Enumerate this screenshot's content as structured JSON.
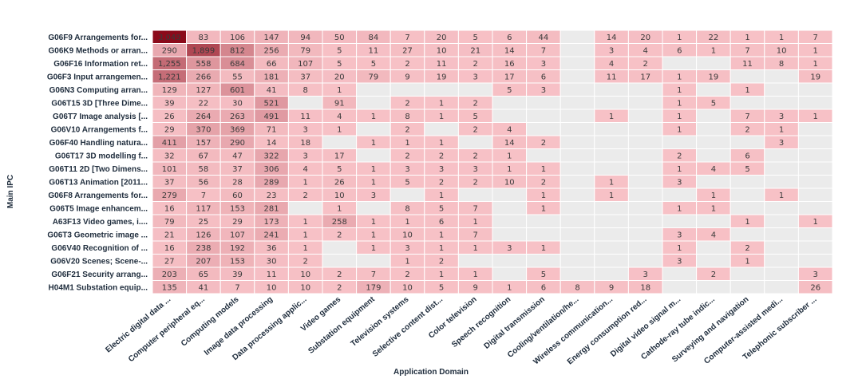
{
  "chart_data": {
    "type": "heatmap",
    "xlabel": "Application Domain",
    "ylabel": "Main IPC",
    "columns": [
      "Electric digital data ...",
      "Computer peripheral eq...",
      "Computing models",
      "Image data processing",
      "Data processing applic...",
      "Video games",
      "Substation equipment",
      "Television systems",
      "Selective content dist...",
      "Color television",
      "Speech recognition",
      "Digital transmission",
      "Cooling/ventilation/he...",
      "Wireless communication...",
      "Energy consumption red...",
      "Digital video signal m...",
      "Cathode-ray tube indic...",
      "Surveying and navigation",
      "Computer-assisted medi...",
      "Telephonic subscriber ..."
    ],
    "rows": [
      "G06F9 Arrangements for...",
      "G06K9 Methods or arran...",
      "G06F16 Information ret...",
      "G06F3 Input arrangemen...",
      "G06N3 Computing arran...",
      "G06T15 3D [Three Dime...",
      "G06T7 Image analysis [...",
      "G06V10 Arrangements f...",
      "G06F40 Handling natura...",
      "G06T17 3D modelling f...",
      "G06T11 2D [Two Dimens...",
      "G06T13 Animation [2011...",
      "G06F8 Arrangements for...",
      "G06T5 Image enhancem...",
      "A63F13 Video games, i....",
      "G06T3 Geometric image ...",
      "G06V40 Recognition of ...",
      "G06V20 Scenes; Scene-...",
      "G06F21 Security arrang...",
      "H04M1 Substation equip..."
    ],
    "values": [
      [
        3049,
        83,
        106,
        147,
        94,
        50,
        84,
        7,
        20,
        5,
        6,
        44,
        null,
        14,
        20,
        1,
        22,
        1,
        1,
        7
      ],
      [
        290,
        1899,
        812,
        256,
        79,
        5,
        11,
        27,
        10,
        21,
        14,
        7,
        null,
        3,
        4,
        6,
        1,
        7,
        10,
        1
      ],
      [
        1255,
        558,
        684,
        66,
        107,
        5,
        5,
        2,
        11,
        2,
        16,
        3,
        null,
        4,
        2,
        null,
        null,
        11,
        8,
        1
      ],
      [
        1221,
        266,
        55,
        181,
        37,
        20,
        79,
        9,
        19,
        3,
        17,
        6,
        null,
        11,
        17,
        1,
        19,
        null,
        null,
        19
      ],
      [
        129,
        127,
        601,
        41,
        8,
        1,
        null,
        null,
        null,
        null,
        5,
        3,
        null,
        null,
        null,
        1,
        null,
        1,
        null,
        null
      ],
      [
        39,
        22,
        30,
        521,
        null,
        91,
        null,
        2,
        1,
        2,
        null,
        null,
        null,
        null,
        null,
        1,
        5,
        null,
        null,
        null
      ],
      [
        26,
        264,
        263,
        491,
        11,
        4,
        1,
        8,
        1,
        5,
        null,
        null,
        null,
        1,
        null,
        1,
        null,
        7,
        3,
        1
      ],
      [
        29,
        370,
        369,
        71,
        3,
        1,
        null,
        2,
        null,
        2,
        4,
        null,
        null,
        null,
        null,
        1,
        null,
        2,
        1,
        null
      ],
      [
        411,
        157,
        290,
        14,
        18,
        null,
        1,
        1,
        1,
        null,
        14,
        2,
        null,
        null,
        null,
        null,
        null,
        null,
        3,
        null
      ],
      [
        32,
        67,
        47,
        322,
        3,
        17,
        null,
        2,
        2,
        2,
        1,
        null,
        null,
        null,
        null,
        2,
        null,
        6,
        null,
        null
      ],
      [
        101,
        58,
        37,
        306,
        4,
        5,
        1,
        3,
        3,
        3,
        1,
        1,
        null,
        null,
        null,
        1,
        4,
        5,
        null,
        null
      ],
      [
        37,
        56,
        28,
        289,
        1,
        26,
        1,
        5,
        2,
        2,
        10,
        2,
        null,
        1,
        null,
        3,
        null,
        null,
        null,
        null
      ],
      [
        279,
        7,
        60,
        23,
        2,
        10,
        3,
        null,
        1,
        null,
        null,
        1,
        null,
        1,
        null,
        null,
        1,
        null,
        1,
        null
      ],
      [
        16,
        117,
        153,
        281,
        null,
        1,
        null,
        8,
        5,
        7,
        null,
        1,
        null,
        null,
        null,
        1,
        1,
        null,
        null,
        null
      ],
      [
        79,
        25,
        29,
        173,
        1,
        258,
        1,
        1,
        6,
        1,
        null,
        null,
        null,
        null,
        null,
        null,
        null,
        1,
        null,
        1
      ],
      [
        21,
        126,
        107,
        241,
        1,
        2,
        1,
        10,
        1,
        7,
        null,
        null,
        null,
        null,
        null,
        3,
        4,
        null,
        null,
        null
      ],
      [
        16,
        238,
        192,
        36,
        1,
        null,
        1,
        3,
        1,
        1,
        3,
        1,
        null,
        null,
        null,
        1,
        null,
        2,
        null,
        null
      ],
      [
        27,
        207,
        153,
        30,
        2,
        null,
        null,
        1,
        2,
        null,
        null,
        null,
        null,
        null,
        null,
        3,
        null,
        1,
        null,
        null
      ],
      [
        203,
        65,
        39,
        11,
        10,
        2,
        7,
        2,
        1,
        1,
        null,
        5,
        null,
        null,
        3,
        null,
        2,
        null,
        null,
        3
      ],
      [
        135,
        41,
        7,
        10,
        10,
        2,
        179,
        10,
        5,
        9,
        1,
        6,
        8,
        9,
        18,
        null,
        null,
        null,
        null,
        26
      ]
    ],
    "colors": {
      "empty": "#ebebeb",
      "low": "#f7c1c6",
      "high": "#8b0a1a",
      "grid": "#ffffff"
    }
  }
}
